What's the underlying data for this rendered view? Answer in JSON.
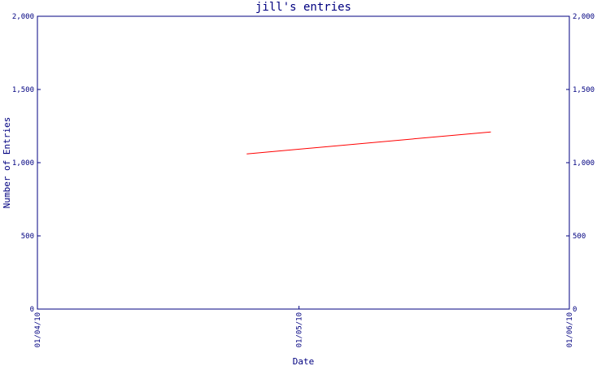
{
  "chart_data": {
    "type": "line",
    "title": "jill's entries",
    "xlabel": "Date",
    "ylabel": "Number of Entries",
    "ylim": [
      0,
      2000
    ],
    "y_ticks": [
      "0",
      "500",
      "1,000",
      "1,500",
      "2,000"
    ],
    "y_tick_values": [
      0,
      500,
      1000,
      1500,
      2000
    ],
    "x_ticks": [
      "01/04/10",
      "01/05/10",
      "01/06/10"
    ],
    "x_tick_values": [
      "2010-04-01",
      "2010-05-01",
      "2010-06-01"
    ],
    "xlim": [
      "2010-04-01",
      "2010-06-01"
    ],
    "grid": false,
    "series": [
      {
        "x": [
          "2010-04-25",
          "2010-05-23"
        ],
        "y": [
          1060,
          1210
        ]
      }
    ],
    "colors": {
      "axis": "#000080",
      "line": "#ff0000"
    }
  }
}
